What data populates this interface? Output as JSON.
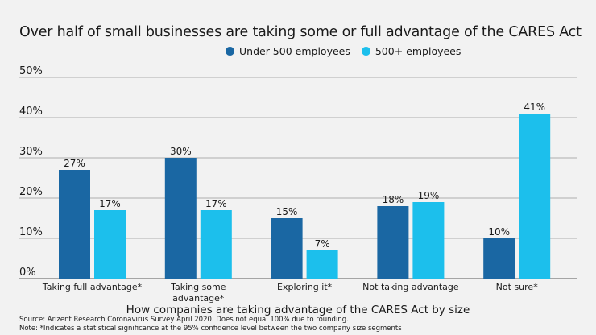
{
  "chart_data": {
    "type": "bar",
    "title": "Over half of small businesses are taking some or full advantage of the CARES Act",
    "xlabel": "How companies are taking advantage of the CARES Act by size",
    "ylabel": "",
    "ylim": [
      0,
      50
    ],
    "yticks": [
      0,
      10,
      20,
      30,
      40,
      50
    ],
    "ytick_labels": [
      "0%",
      "10%",
      "20%",
      "30%",
      "40%",
      "50%"
    ],
    "grid": true,
    "legend_placement": "top-center",
    "categories": [
      [
        "Taking full advantage*"
      ],
      [
        "Taking some",
        "advantage*"
      ],
      [
        "Exploring it*"
      ],
      [
        "Not taking advantage"
      ],
      [
        "Not sure*"
      ]
    ],
    "series": [
      {
        "name": "Under 500 employees",
        "color": "#1a67a3",
        "values": [
          27,
          30,
          15,
          18,
          10
        ],
        "labels": [
          "27%",
          "30%",
          "15%",
          "18%",
          "10%"
        ]
      },
      {
        "name": "500+ employees",
        "color": "#1cbfec",
        "values": [
          17,
          17,
          7,
          19,
          41
        ],
        "labels": [
          "17%",
          "17%",
          "7%",
          "19%",
          "41%"
        ]
      }
    ]
  },
  "footer": {
    "source": "Source: Arizent Research Coronavirus Survey April 2020. Does not equal 100% due to rounding.",
    "note": "Note: *Indicates a statistical significance at the 95% confidence level between the two company size segments"
  }
}
